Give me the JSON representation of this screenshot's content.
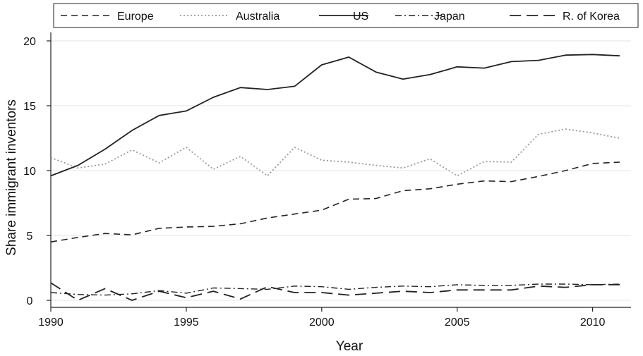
{
  "chart_data": {
    "type": "line",
    "xlabel": "Year",
    "ylabel": "Share immigrant inventors",
    "xlim": [
      1990,
      2011
    ],
    "ylim": [
      0,
      20
    ],
    "x_ticks": [
      1990,
      1995,
      2000,
      2005,
      2010
    ],
    "y_ticks": [
      0,
      5,
      10,
      15,
      20
    ],
    "grid": "horizontal",
    "legend_position": "top",
    "x": [
      1990,
      1991,
      1992,
      1993,
      1994,
      1995,
      1996,
      1997,
      1998,
      1999,
      2000,
      2001,
      2002,
      2003,
      2004,
      2005,
      2006,
      2007,
      2008,
      2009,
      2010,
      2011
    ],
    "series": [
      {
        "name": "Europe",
        "style": "dashed",
        "color": "#222222",
        "values": [
          4.5,
          4.85,
          5.15,
          5.05,
          5.55,
          5.65,
          5.7,
          5.9,
          6.35,
          6.65,
          6.95,
          7.8,
          7.85,
          8.45,
          8.6,
          8.95,
          9.2,
          9.15,
          9.55,
          10.0,
          10.55,
          10.65
        ]
      },
      {
        "name": "Australia",
        "style": "dotted",
        "color": "#9a9a9a",
        "values": [
          11.0,
          10.2,
          10.5,
          11.6,
          10.6,
          11.8,
          10.1,
          11.1,
          9.6,
          11.8,
          10.8,
          10.65,
          10.4,
          10.2,
          10.9,
          9.6,
          10.7,
          10.65,
          12.8,
          13.2,
          12.9,
          12.5
        ]
      },
      {
        "name": "US",
        "style": "solid",
        "color": "#222222",
        "values": [
          9.6,
          10.4,
          11.65,
          13.1,
          14.25,
          14.6,
          15.65,
          16.4,
          16.25,
          16.5,
          18.15,
          18.75,
          17.6,
          17.05,
          17.4,
          18.0,
          17.9,
          18.4,
          18.5,
          18.9,
          18.95,
          18.85
        ]
      },
      {
        "name": "Japan",
        "style": "dashdot",
        "color": "#222222",
        "values": [
          0.6,
          0.45,
          0.4,
          0.5,
          0.75,
          0.55,
          0.95,
          0.9,
          0.85,
          1.1,
          1.05,
          0.85,
          1.0,
          1.1,
          1.05,
          1.2,
          1.15,
          1.15,
          1.25,
          1.25,
          1.2,
          1.25
        ]
      },
      {
        "name": "R. of Korea",
        "style": "longdash",
        "color": "#222222",
        "values": [
          1.35,
          0.0,
          0.9,
          0.0,
          0.7,
          0.2,
          0.7,
          0.1,
          1.05,
          0.6,
          0.6,
          0.4,
          0.55,
          0.7,
          0.6,
          0.8,
          0.8,
          0.8,
          1.1,
          1.0,
          1.2,
          1.2
        ]
      }
    ]
  }
}
